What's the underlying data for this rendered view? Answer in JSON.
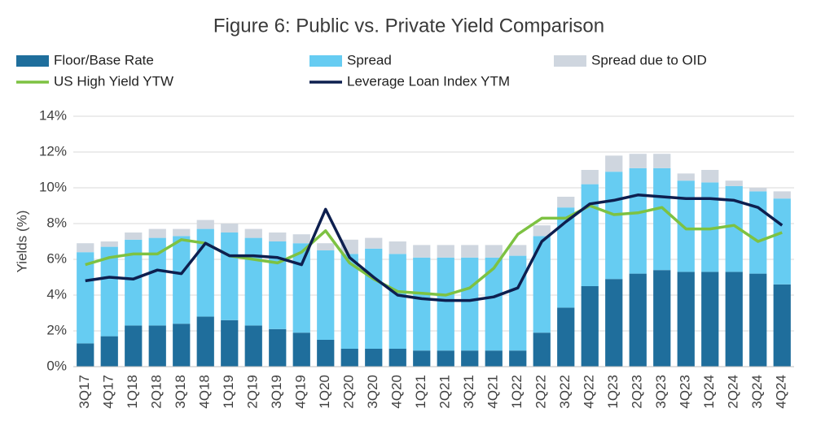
{
  "chart_data": {
    "type": "bar",
    "title": "Figure 6: Public vs. Private Yield Comparison",
    "ylabel": "Yields (%)",
    "categories": [
      "3Q17",
      "4Q17",
      "1Q18",
      "2Q18",
      "3Q18",
      "4Q18",
      "1Q19",
      "2Q19",
      "3Q19",
      "4Q19",
      "1Q20",
      "2Q20",
      "3Q20",
      "4Q20",
      "1Q21",
      "2Q21",
      "3Q21",
      "4Q21",
      "1Q22",
      "2Q22",
      "3Q22",
      "4Q22",
      "1Q23",
      "2Q23",
      "3Q23",
      "4Q23",
      "1Q24",
      "2Q24",
      "3Q24",
      "4Q24"
    ],
    "series": [
      {
        "name": "Floor/Base Rate",
        "type": "bar",
        "color": "#1f6e9c",
        "values": [
          1.3,
          1.7,
          2.3,
          2.3,
          2.4,
          2.8,
          2.6,
          2.3,
          2.1,
          1.9,
          1.5,
          1.0,
          1.0,
          1.0,
          0.9,
          0.9,
          0.9,
          0.9,
          0.9,
          1.9,
          3.3,
          4.5,
          4.9,
          5.2,
          5.4,
          5.3,
          5.3,
          5.3,
          5.2,
          4.6
        ]
      },
      {
        "name": "Spread",
        "type": "bar",
        "color": "#66ccf2",
        "values": [
          5.1,
          5.0,
          4.8,
          4.9,
          4.9,
          4.9,
          4.9,
          4.9,
          4.9,
          5.0,
          5.0,
          5.3,
          5.6,
          5.3,
          5.2,
          5.2,
          5.2,
          5.2,
          5.3,
          5.4,
          5.6,
          5.7,
          6.0,
          5.9,
          5.7,
          5.1,
          5.0,
          4.8,
          4.6,
          4.8
        ]
      },
      {
        "name": "Spread due to OID",
        "type": "bar",
        "color": "#cfd6df",
        "values": [
          0.5,
          0.3,
          0.4,
          0.5,
          0.4,
          0.5,
          0.5,
          0.5,
          0.5,
          0.5,
          0.4,
          0.8,
          0.6,
          0.7,
          0.7,
          0.7,
          0.7,
          0.7,
          0.6,
          0.6,
          0.6,
          0.8,
          0.9,
          0.8,
          0.8,
          0.4,
          0.7,
          0.3,
          0.2,
          0.4
        ]
      },
      {
        "name": "US High Yield YTW",
        "type": "line",
        "color": "#7dc242",
        "values": [
          5.7,
          6.1,
          6.3,
          6.3,
          7.1,
          6.9,
          6.2,
          6.0,
          5.8,
          6.4,
          7.6,
          5.8,
          4.9,
          4.2,
          4.1,
          4.0,
          4.4,
          5.5,
          7.4,
          8.3,
          8.3,
          9.0,
          8.5,
          8.6,
          8.9,
          7.7,
          7.7,
          7.9,
          7.0,
          7.5
        ]
      },
      {
        "name": "Leverage Loan Index YTM",
        "type": "line",
        "color": "#0d1f4f",
        "values": [
          4.8,
          5.0,
          4.9,
          5.4,
          5.2,
          6.9,
          6.2,
          6.2,
          6.1,
          5.7,
          8.8,
          6.1,
          5.0,
          4.0,
          3.8,
          3.7,
          3.7,
          3.9,
          4.4,
          7.0,
          8.1,
          9.1,
          9.3,
          9.6,
          9.5,
          9.4,
          9.4,
          9.3,
          8.9,
          7.9
        ]
      }
    ],
    "ylim": [
      0,
      14
    ],
    "yticks": [
      {
        "value": 0,
        "label": "0%"
      },
      {
        "value": 2,
        "label": "2%"
      },
      {
        "value": 4,
        "label": "4%"
      },
      {
        "value": 6,
        "label": "6%"
      },
      {
        "value": 8,
        "label": "8%"
      },
      {
        "value": 10,
        "label": "10%"
      },
      {
        "value": 12,
        "label": "12%"
      },
      {
        "value": 14,
        "label": "14%"
      }
    ],
    "grid": true
  }
}
